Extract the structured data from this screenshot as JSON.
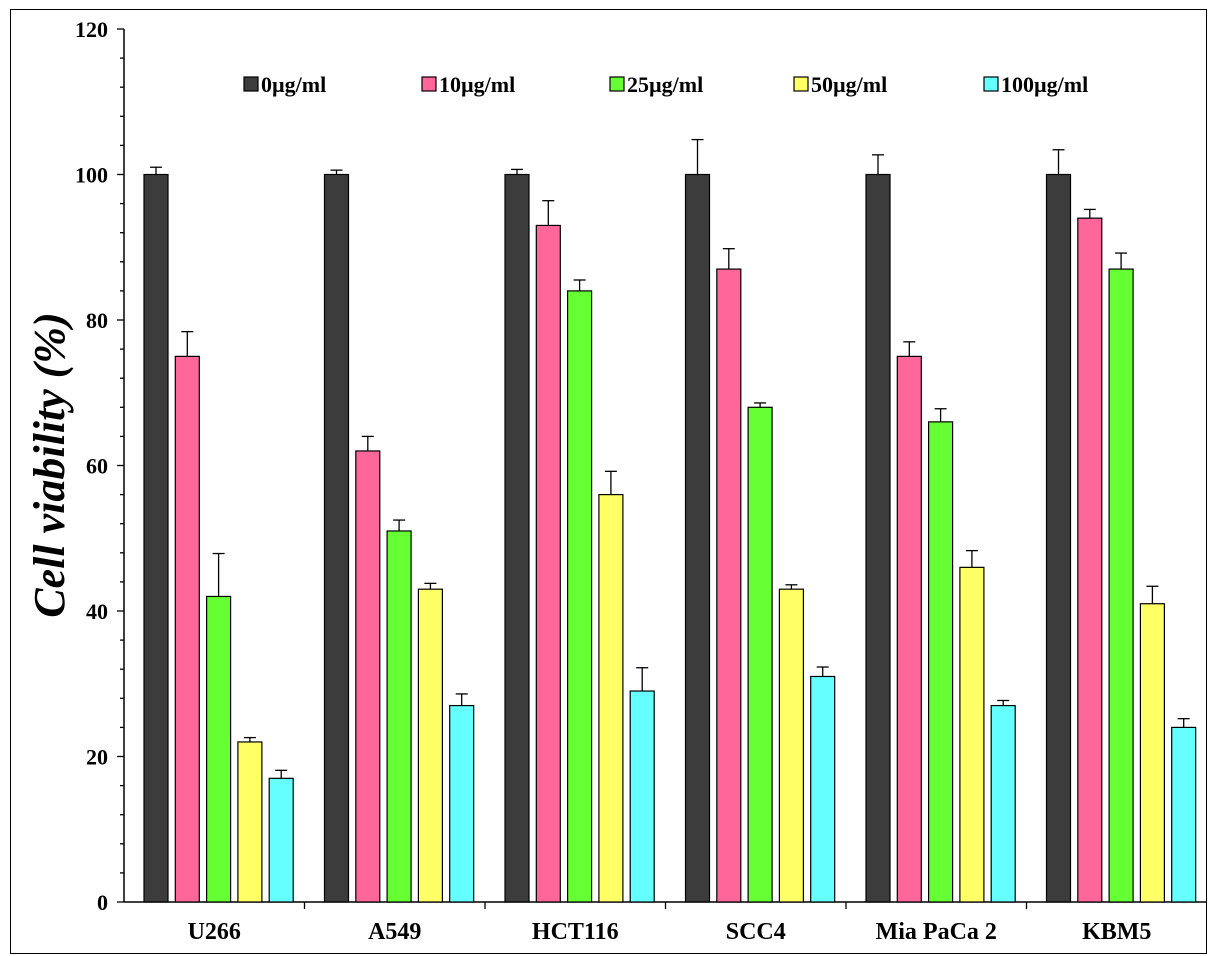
{
  "chart_data": {
    "type": "bar",
    "title": "",
    "xlabel": "",
    "ylabel": "Cell viability (%)",
    "ylim": [
      0,
      120
    ],
    "yticks": [
      0,
      20,
      40,
      60,
      80,
      100,
      120
    ],
    "grid": false,
    "legend_position": "top",
    "categories": [
      "U266",
      "A549",
      "HCT116",
      "SCC4",
      "Mia PaCa 2",
      "KBM5"
    ],
    "series": [
      {
        "name": "0µg/ml",
        "color": "#3c3c3c",
        "values": [
          100,
          100,
          100,
          100,
          100,
          100
        ],
        "errors": [
          1.0,
          0.6,
          0.7,
          4.8,
          2.7,
          3.4
        ]
      },
      {
        "name": "10µg/ml",
        "color": "#ff6699",
        "values": [
          75,
          62,
          93,
          87,
          75,
          94
        ],
        "errors": [
          3.4,
          2.0,
          3.4,
          2.8,
          2.0,
          1.2
        ]
      },
      {
        "name": "25µg/ml",
        "color": "#66ff33",
        "values": [
          42,
          51,
          84,
          68,
          66,
          87
        ],
        "errors": [
          5.9,
          1.5,
          1.5,
          0.6,
          1.8,
          2.2
        ]
      },
      {
        "name": "50µg/ml",
        "color": "#ffff66",
        "values": [
          22,
          43,
          56,
          43,
          46,
          41
        ],
        "errors": [
          0.6,
          0.8,
          3.2,
          0.6,
          2.3,
          2.4
        ]
      },
      {
        "name": "100µg/ml",
        "color": "#66ffff",
        "values": [
          17,
          27,
          29,
          31,
          27,
          24
        ],
        "errors": [
          1.1,
          1.6,
          3.2,
          1.3,
          0.7,
          1.2
        ]
      }
    ]
  }
}
